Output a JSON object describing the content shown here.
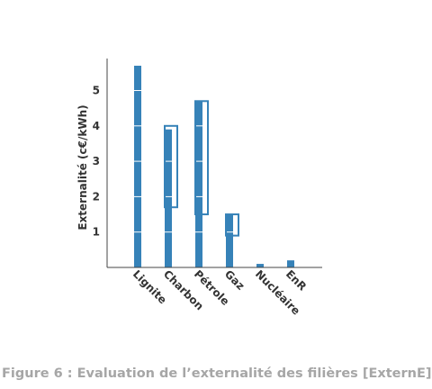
{
  "caption": "Figure 6 : Evaluation de l’externalité des filières [ExternE]",
  "chart_data": {
    "type": "bar",
    "title": "",
    "ylabel": "Externalité (c€/kWh)",
    "xlabel": "",
    "categories": [
      "Lignite",
      "Charbon",
      "Pétrole",
      "Gaz",
      "Nucléaire",
      "EnR"
    ],
    "values": [
      5.7,
      3.9,
      4.7,
      1.5,
      0.1,
      0.2
    ],
    "ranges": [
      null,
      [
        1.7,
        4.0
      ],
      [
        1.5,
        4.7
      ],
      [
        0.9,
        1.5
      ],
      null,
      null
    ],
    "yticks": [
      1,
      2,
      3,
      4,
      5
    ],
    "ylim": [
      0,
      5.8
    ],
    "grid": false,
    "colors": {
      "bar": "#3682b8",
      "axis": "#444444",
      "text": "#333333",
      "caption": "#a6a6a6"
    }
  }
}
